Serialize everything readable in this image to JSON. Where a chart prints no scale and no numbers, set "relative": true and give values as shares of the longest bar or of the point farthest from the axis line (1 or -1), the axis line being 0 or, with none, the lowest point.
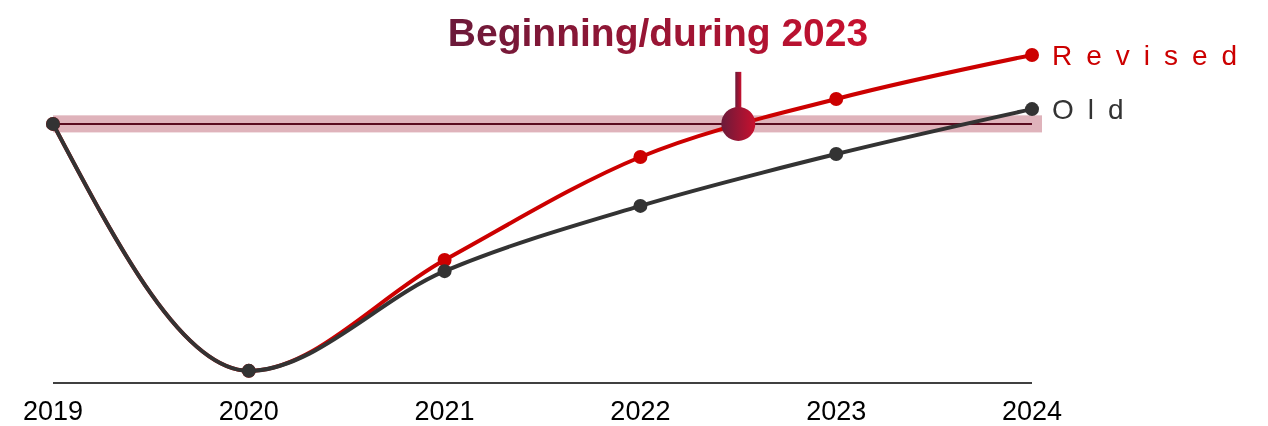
{
  "chart_data": {
    "type": "line",
    "relative": true,
    "x": [
      2019,
      2020,
      2021,
      2022,
      2023,
      2024
    ],
    "xlim": [
      2019,
      2024
    ],
    "xticks": [
      2019,
      2020,
      2021,
      2022,
      2023,
      2024
    ],
    "series": [
      {
        "name": "Revised",
        "color": "#cc0000",
        "values": [
          0.79,
          0.037,
          0.375,
          0.689,
          0.866,
          1
        ]
      },
      {
        "name": "Old",
        "color": "#333333",
        "values": [
          0.79,
          0.037,
          0.341,
          0.54,
          0.698,
          0.835
        ]
      }
    ],
    "ref_lines": [
      {
        "axis": "y",
        "value": 0.79,
        "color": "#5a0a1e"
      }
    ],
    "bands": [
      {
        "axis": "y",
        "from": 0.764,
        "to": 0.816,
        "color": "#dfb3bb"
      }
    ],
    "annotations": [
      {
        "text": "Beginning/during 2023",
        "x": 2022.5,
        "y": 0.79
      }
    ],
    "marker": "circle",
    "legend": "right"
  }
}
